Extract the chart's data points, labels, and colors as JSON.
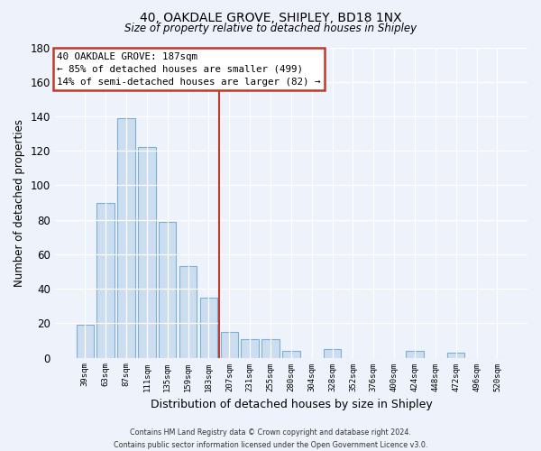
{
  "title": "40, OAKDALE GROVE, SHIPLEY, BD18 1NX",
  "subtitle": "Size of property relative to detached houses in Shipley",
  "xlabel": "Distribution of detached houses by size in Shipley",
  "ylabel": "Number of detached properties",
  "bar_color": "#ccddf0",
  "bar_edge_color": "#7bafd4",
  "highlight_color": "#c0392b",
  "categories": [
    "39sqm",
    "63sqm",
    "87sqm",
    "111sqm",
    "135sqm",
    "159sqm",
    "183sqm",
    "207sqm",
    "231sqm",
    "255sqm",
    "280sqm",
    "304sqm",
    "328sqm",
    "352sqm",
    "376sqm",
    "400sqm",
    "424sqm",
    "448sqm",
    "472sqm",
    "496sqm",
    "520sqm"
  ],
  "values": [
    19,
    90,
    139,
    122,
    79,
    53,
    35,
    15,
    11,
    11,
    4,
    0,
    5,
    0,
    0,
    0,
    4,
    0,
    3,
    0,
    0
  ],
  "highlight_index": 6,
  "annotation_line1": "40 OAKDALE GROVE: 187sqm",
  "annotation_line2": "← 85% of detached houses are smaller (499)",
  "annotation_line3": "14% of semi-detached houses are larger (82) →",
  "ylim": [
    0,
    180
  ],
  "yticks": [
    0,
    20,
    40,
    60,
    80,
    100,
    120,
    140,
    160,
    180
  ],
  "footer_line1": "Contains HM Land Registry data © Crown copyright and database right 2024.",
  "footer_line2": "Contains public sector information licensed under the Open Government Licence v3.0.",
  "bg_color": "#eef2fb"
}
